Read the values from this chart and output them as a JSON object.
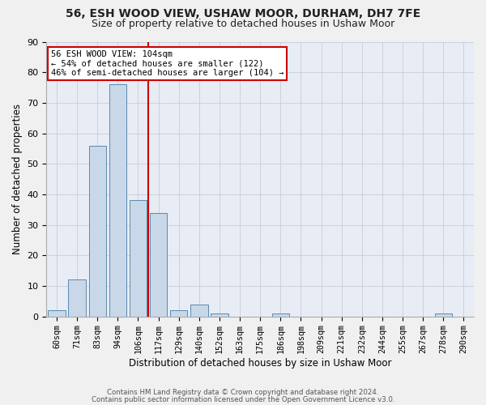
{
  "title_line1": "56, ESH WOOD VIEW, USHAW MOOR, DURHAM, DH7 7FE",
  "title_line2": "Size of property relative to detached houses in Ushaw Moor",
  "xlabel": "Distribution of detached houses by size in Ushaw Moor",
  "ylabel": "Number of detached properties",
  "bin_labels": [
    "60sqm",
    "71sqm",
    "83sqm",
    "94sqm",
    "106sqm",
    "117sqm",
    "129sqm",
    "140sqm",
    "152sqm",
    "163sqm",
    "175sqm",
    "186sqm",
    "198sqm",
    "209sqm",
    "221sqm",
    "232sqm",
    "244sqm",
    "255sqm",
    "267sqm",
    "278sqm",
    "290sqm"
  ],
  "bar_values": [
    2,
    12,
    56,
    76,
    38,
    34,
    2,
    4,
    1,
    0,
    0,
    1,
    0,
    0,
    0,
    0,
    0,
    0,
    0,
    1,
    0
  ],
  "bar_color": "#c8d8e8",
  "bar_edge_color": "#5a8ab0",
  "vline_x": 4.5,
  "annotation_text_line1": "56 ESH WOOD VIEW: 104sqm",
  "annotation_text_line2": "← 54% of detached houses are smaller (122)",
  "annotation_text_line3": "46% of semi-detached houses are larger (104) →",
  "vline_color": "#cc0000",
  "annotation_box_facecolor": "#ffffff",
  "annotation_box_edgecolor": "#cc0000",
  "ylim": [
    0,
    90
  ],
  "yticks": [
    0,
    10,
    20,
    30,
    40,
    50,
    60,
    70,
    80,
    90
  ],
  "grid_color": "#c8ccd8",
  "bg_color": "#e8ecf4",
  "fig_facecolor": "#f0f0f0",
  "footer_line1": "Contains HM Land Registry data © Crown copyright and database right 2024.",
  "footer_line2": "Contains public sector information licensed under the Open Government Licence v3.0."
}
